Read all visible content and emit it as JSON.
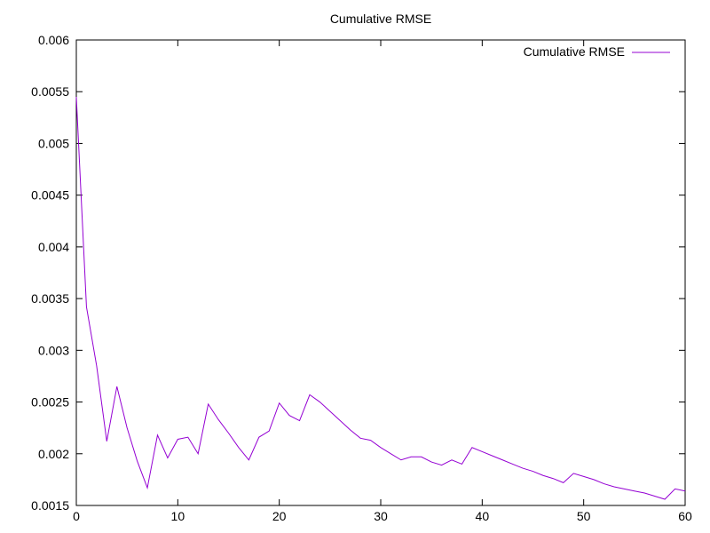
{
  "chart_data": {
    "type": "line",
    "title": "Cumulative RMSE",
    "xlabel": "",
    "ylabel": "",
    "xlim": [
      0,
      60
    ],
    "ylim": [
      0.0015,
      0.006
    ],
    "x_ticks": [
      0,
      10,
      20,
      30,
      40,
      50,
      60
    ],
    "x_tick_labels": [
      "0",
      "10",
      "20",
      "30",
      "40",
      "50",
      "60"
    ],
    "y_ticks": [
      0.0015,
      0.002,
      0.0025,
      0.003,
      0.0035,
      0.004,
      0.0045,
      0.005,
      0.0055,
      0.006
    ],
    "y_tick_labels": [
      "0.0015",
      "0.002",
      "0.0025",
      "0.003",
      "0.0035",
      "0.004",
      "0.0045",
      "0.005",
      "0.0055",
      "0.006"
    ],
    "grid": false,
    "legend_position": "top-right",
    "series": [
      {
        "name": "Cumulative RMSE",
        "color": "#9400d3",
        "x": [
          0,
          1,
          2,
          3,
          4,
          5,
          6,
          7,
          8,
          9,
          10,
          11,
          12,
          13,
          14,
          15,
          16,
          17,
          18,
          19,
          20,
          21,
          22,
          23,
          24,
          25,
          26,
          27,
          28,
          29,
          30,
          31,
          32,
          33,
          34,
          35,
          36,
          37,
          38,
          39,
          40,
          41,
          42,
          43,
          44,
          45,
          46,
          47,
          48,
          49,
          50,
          51,
          52,
          53,
          54,
          55,
          56,
          57,
          58,
          59,
          60
        ],
        "y": [
          0.00545,
          0.00342,
          0.00285,
          0.00212,
          0.00265,
          0.00225,
          0.00193,
          0.00167,
          0.00218,
          0.00196,
          0.00214,
          0.00216,
          0.002,
          0.00248,
          0.00233,
          0.0022,
          0.00206,
          0.00194,
          0.00216,
          0.00222,
          0.00249,
          0.00237,
          0.00232,
          0.00257,
          0.0025,
          0.00241,
          0.00232,
          0.00223,
          0.00215,
          0.00213,
          0.00206,
          0.002,
          0.00194,
          0.00197,
          0.00197,
          0.00192,
          0.00189,
          0.00194,
          0.0019,
          0.00206,
          0.00202,
          0.00198,
          0.00194,
          0.0019,
          0.00186,
          0.00183,
          0.00179,
          0.00176,
          0.00172,
          0.00181,
          0.00178,
          0.00175,
          0.00171,
          0.00168,
          0.00166,
          0.00164,
          0.00162,
          0.00159,
          0.00156,
          0.00166,
          0.00164
        ]
      }
    ]
  }
}
